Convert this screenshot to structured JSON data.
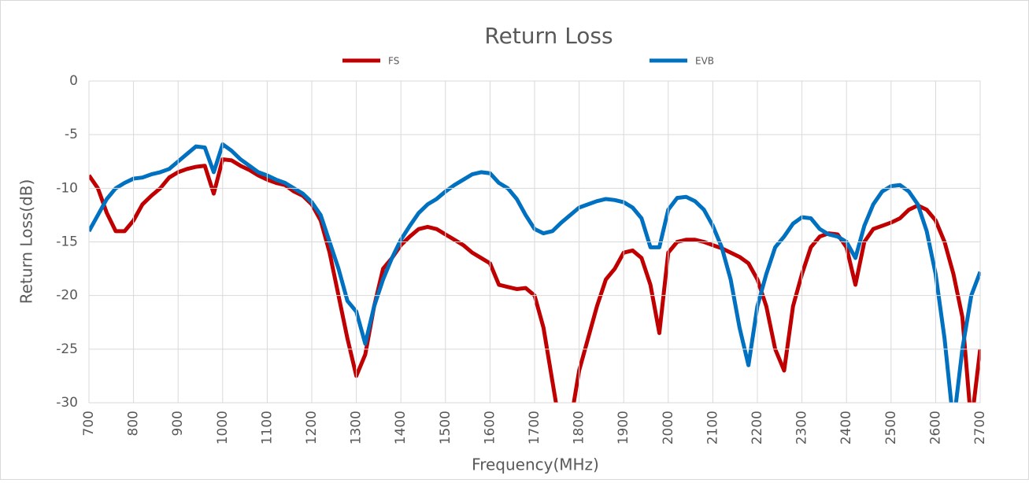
{
  "chart_data": {
    "type": "line",
    "title": "Return Loss",
    "x_label": "Frequency(MHz)",
    "y_label": "Return Loss(dB)",
    "x": [
      700,
      720,
      740,
      760,
      780,
      800,
      820,
      840,
      860,
      880,
      900,
      920,
      940,
      960,
      980,
      1000,
      1020,
      1040,
      1060,
      1080,
      1100,
      1120,
      1140,
      1160,
      1180,
      1200,
      1220,
      1240,
      1260,
      1280,
      1300,
      1320,
      1340,
      1360,
      1380,
      1400,
      1420,
      1440,
      1460,
      1480,
      1500,
      1520,
      1540,
      1560,
      1580,
      1600,
      1620,
      1640,
      1660,
      1680,
      1700,
      1720,
      1740,
      1760,
      1780,
      1800,
      1820,
      1840,
      1860,
      1880,
      1900,
      1920,
      1940,
      1960,
      1980,
      2000,
      2020,
      2040,
      2060,
      2080,
      2100,
      2120,
      2140,
      2160,
      2180,
      2200,
      2220,
      2240,
      2260,
      2280,
      2300,
      2320,
      2340,
      2360,
      2380,
      2400,
      2420,
      2440,
      2460,
      2480,
      2500,
      2520,
      2540,
      2560,
      2580,
      2600,
      2620,
      2640,
      2660,
      2680,
      2700
    ],
    "series": [
      {
        "name": "FS",
        "color": "#c00000",
        "values": [
          -8.8,
          -10,
          -12.3,
          -14,
          -14,
          -13,
          -11.5,
          -10.7,
          -10,
          -9,
          -8.5,
          -8.2,
          -8,
          -7.9,
          -10.5,
          -7.3,
          -7.4,
          -7.9,
          -8.3,
          -8.8,
          -9.2,
          -9.5,
          -9.7,
          -10.3,
          -10.7,
          -11.5,
          -13,
          -16,
          -20,
          -24,
          -27.5,
          -25.5,
          -21,
          -17.5,
          -16.5,
          -15.3,
          -14.5,
          -13.8,
          -13.6,
          -13.8,
          -14.3,
          -14.8,
          -15.3,
          -16,
          -16.5,
          -17,
          -19,
          -19.2,
          -19.4,
          -19.3,
          -20,
          -23,
          -28,
          -33,
          -32,
          -27,
          -24,
          -21,
          -18.5,
          -17.5,
          -16,
          -15.8,
          -16.5,
          -19,
          -23.5,
          -16,
          -15,
          -14.8,
          -14.8,
          -15,
          -15.3,
          -15.6,
          -16,
          -16.4,
          -17,
          -18.5,
          -21,
          -25,
          -27,
          -21,
          -18,
          -15.5,
          -14.5,
          -14.2,
          -14.3,
          -15.5,
          -19,
          -15,
          -13.8,
          -13.5,
          -13.2,
          -12.8,
          -12,
          -11.6,
          -12,
          -13,
          -15,
          -18,
          -22,
          -32,
          -25
        ]
      },
      {
        "name": "EVB",
        "color": "#0070c0",
        "values": [
          -14,
          -12.5,
          -11,
          -10,
          -9.5,
          -9.1,
          -9,
          -8.7,
          -8.5,
          -8.2,
          -7.5,
          -6.8,
          -6.1,
          -6.2,
          -8.5,
          -5.9,
          -6.5,
          -7.3,
          -7.9,
          -8.5,
          -8.8,
          -9.2,
          -9.5,
          -10,
          -10.5,
          -11.3,
          -12.5,
          -15,
          -17.5,
          -20.5,
          -21.5,
          -24.5,
          -21,
          -18.5,
          -16.5,
          -14.8,
          -13.5,
          -12.3,
          -11.5,
          -11,
          -10.3,
          -9.7,
          -9.2,
          -8.7,
          -8.5,
          -8.6,
          -9.5,
          -10,
          -11,
          -12.5,
          -13.8,
          -14.2,
          -14,
          -13.2,
          -12.5,
          -11.8,
          -11.5,
          -11.2,
          -11,
          -11.1,
          -11.3,
          -11.8,
          -12.8,
          -15.5,
          -15.5,
          -12,
          -10.9,
          -10.8,
          -11.2,
          -12,
          -13.5,
          -15.5,
          -18.5,
          -23,
          -26.5,
          -21,
          -18,
          -15.5,
          -14.5,
          -13.3,
          -12.7,
          -12.8,
          -13.8,
          -14.3,
          -14.5,
          -15,
          -16.5,
          -13.5,
          -11.5,
          -10.3,
          -9.8,
          -9.7,
          -10.3,
          -11.5,
          -14,
          -18,
          -24,
          -32,
          -25,
          -20,
          -17.8
        ]
      }
    ],
    "xlim": [
      700,
      2700
    ],
    "xticks": [
      700,
      800,
      900,
      1000,
      1100,
      1200,
      1300,
      1400,
      1500,
      1600,
      1700,
      1800,
      1900,
      2000,
      2100,
      2200,
      2300,
      2400,
      2500,
      2600,
      2700
    ],
    "ylim": [
      -30,
      0
    ],
    "yticks": [
      0,
      -5,
      -10,
      -15,
      -20,
      -25,
      -30
    ],
    "grid": true,
    "legend": "top"
  }
}
